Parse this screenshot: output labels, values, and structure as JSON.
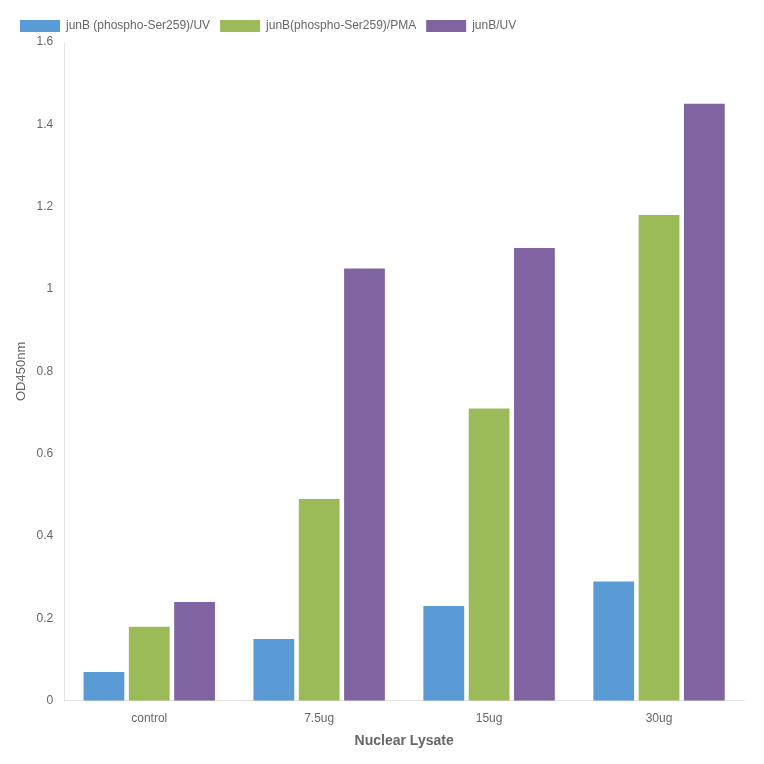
{
  "chart_data": {
    "type": "bar",
    "categories": [
      "control",
      "7.5ug",
      "15ug",
      "30ug"
    ],
    "series": [
      {
        "name": "junB (phospho-Ser259)/UV",
        "color": "#5B9BD5",
        "values": [
          0.07,
          0.15,
          0.23,
          0.29
        ]
      },
      {
        "name": "junB(phospho-Ser259)/PMA",
        "color": "#9BBB59",
        "values": [
          0.18,
          0.49,
          0.71,
          1.18
        ]
      },
      {
        "name": "junB/UV",
        "color": "#8064A2",
        "values": [
          0.24,
          1.05,
          1.1,
          1.45
        ]
      }
    ],
    "xlabel": "Nuclear Lysate",
    "ylabel": "OD450nm",
    "ylim": [
      0,
      1.6
    ],
    "yticks": [
      0,
      0.2,
      0.4,
      0.6,
      0.8,
      1,
      1.2,
      1.4,
      1.6
    ],
    "grid": false,
    "legend": "upper left"
  }
}
